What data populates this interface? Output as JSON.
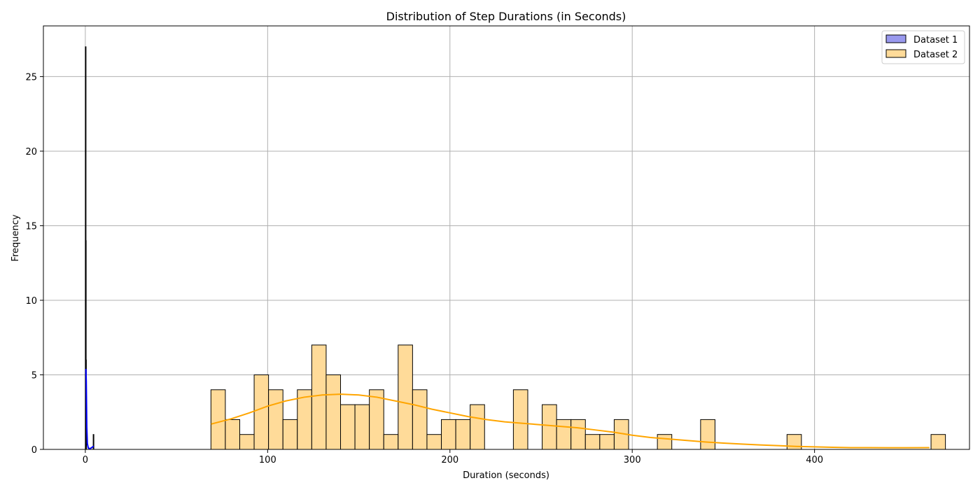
{
  "chart_data": {
    "type": "bar",
    "title": "Distribution of Step Durations (in Seconds)",
    "xlabel": "Duration (seconds)",
    "ylabel": "Frequency",
    "xlim": [
      -23,
      485
    ],
    "ylim": [
      0,
      28.4
    ],
    "xticks": [
      0,
      100,
      200,
      300,
      400
    ],
    "yticks": [
      0,
      5,
      10,
      15,
      20,
      25
    ],
    "grid": true,
    "legend_position": "top-right",
    "series": [
      {
        "name": "Dataset 1",
        "color": "#9999ee",
        "kde_color": "#0000ff",
        "bins": [
          {
            "x0": 0.0,
            "x1": 0.09,
            "count": 27
          },
          {
            "x0": 0.09,
            "x1": 0.18,
            "count": 14
          },
          {
            "x0": 0.18,
            "x1": 0.27,
            "count": 6
          },
          {
            "x0": 0.27,
            "x1": 0.36,
            "count": 3
          },
          {
            "x0": 4.3,
            "x1": 4.6,
            "count": 1
          }
        ],
        "kde": [
          [
            0.3,
            5.4
          ],
          [
            0.5,
            4.6
          ],
          [
            0.8,
            1.5
          ],
          [
            1.1,
            0.4
          ],
          [
            1.6,
            0.1
          ],
          [
            2.2,
            0.05
          ],
          [
            3.0,
            0.08
          ],
          [
            3.8,
            0.15
          ],
          [
            4.4,
            0.2
          ],
          [
            4.6,
            0.2
          ]
        ]
      },
      {
        "name": "Dataset 2",
        "color": "#ffdb99",
        "kde_color": "#ffa500",
        "bin_start": 68.9,
        "bin_width": 7.9,
        "counts": [
          4,
          2,
          1,
          5,
          4,
          2,
          4,
          7,
          5,
          3,
          3,
          4,
          1,
          7,
          4,
          1,
          2,
          2,
          3,
          0,
          0,
          4,
          0,
          3,
          2,
          2,
          1,
          1,
          2,
          0,
          0,
          1,
          0,
          0,
          2,
          0,
          0,
          0,
          0,
          0,
          1,
          0,
          0,
          0,
          0,
          0,
          0,
          0,
          0,
          0,
          1
        ],
        "kde": [
          [
            69,
            1.7
          ],
          [
            80,
            2.05
          ],
          [
            90,
            2.45
          ],
          [
            100,
            2.9
          ],
          [
            110,
            3.25
          ],
          [
            120,
            3.5
          ],
          [
            130,
            3.65
          ],
          [
            140,
            3.7
          ],
          [
            150,
            3.65
          ],
          [
            160,
            3.5
          ],
          [
            170,
            3.25
          ],
          [
            180,
            3.0
          ],
          [
            190,
            2.7
          ],
          [
            200,
            2.45
          ],
          [
            210,
            2.2
          ],
          [
            220,
            2.0
          ],
          [
            230,
            1.85
          ],
          [
            240,
            1.75
          ],
          [
            250,
            1.65
          ],
          [
            260,
            1.55
          ],
          [
            270,
            1.45
          ],
          [
            280,
            1.3
          ],
          [
            290,
            1.15
          ],
          [
            300,
            0.95
          ],
          [
            310,
            0.8
          ],
          [
            320,
            0.7
          ],
          [
            330,
            0.6
          ],
          [
            340,
            0.5
          ],
          [
            350,
            0.42
          ],
          [
            360,
            0.36
          ],
          [
            370,
            0.3
          ],
          [
            380,
            0.25
          ],
          [
            390,
            0.2
          ],
          [
            400,
            0.17
          ],
          [
            410,
            0.14
          ],
          [
            420,
            0.12
          ],
          [
            430,
            0.12
          ],
          [
            440,
            0.11
          ],
          [
            450,
            0.11
          ],
          [
            463,
            0.12
          ]
        ]
      }
    ]
  }
}
